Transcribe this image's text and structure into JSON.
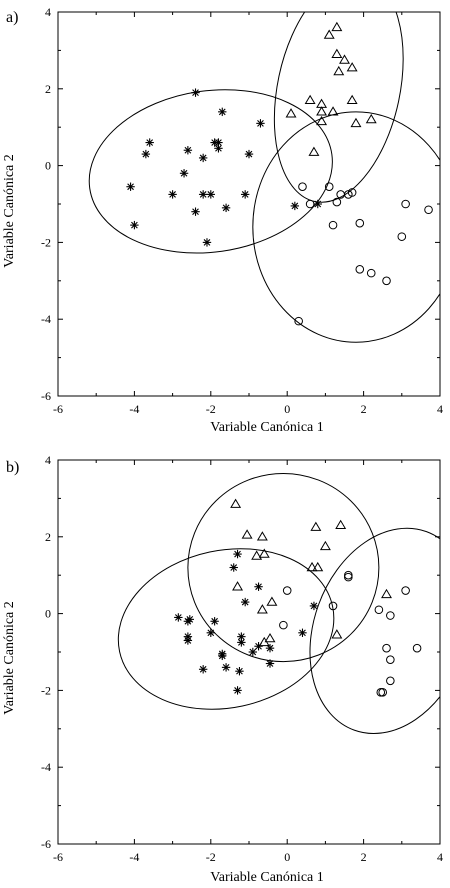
{
  "chart_data": [
    {
      "type": "scatter",
      "panel_label": "a)",
      "xlabel": "Variable Canónica 1",
      "ylabel": "Variable Canónica 2",
      "xlim": [
        -6,
        4
      ],
      "ylim": [
        -6,
        4
      ],
      "xticks": [
        -6,
        -4,
        -2,
        0,
        2,
        4
      ],
      "yticks": [
        -6,
        -4,
        -2,
        0,
        2,
        4
      ],
      "grid": false,
      "series": [
        {
          "marker": "asterisk",
          "points": [
            [
              -2.4,
              1.9
            ],
            [
              -1.7,
              1.4
            ],
            [
              -0.7,
              1.1
            ],
            [
              -3.6,
              0.6
            ],
            [
              -3.7,
              0.3
            ],
            [
              -2.6,
              0.4
            ],
            [
              -1.9,
              0.6
            ],
            [
              -1.8,
              0.6
            ],
            [
              -1.8,
              0.45
            ],
            [
              -2.2,
              0.2
            ],
            [
              -1.0,
              0.3
            ],
            [
              -2.7,
              -0.2
            ],
            [
              -4.1,
              -0.55
            ],
            [
              -3.0,
              -0.75
            ],
            [
              -2.2,
              -0.75
            ],
            [
              -2.0,
              -0.75
            ],
            [
              -1.1,
              -0.75
            ],
            [
              -2.4,
              -1.2
            ],
            [
              -1.6,
              -1.1
            ],
            [
              -4.0,
              -1.55
            ],
            [
              -2.1,
              -2.0
            ],
            [
              0.2,
              -1.05
            ],
            [
              0.8,
              -1.0
            ]
          ]
        },
        {
          "marker": "triangle",
          "points": [
            [
              1.3,
              3.6
            ],
            [
              1.1,
              3.4
            ],
            [
              1.3,
              2.9
            ],
            [
              1.5,
              2.75
            ],
            [
              1.7,
              2.55
            ],
            [
              1.35,
              2.45
            ],
            [
              0.6,
              1.7
            ],
            [
              0.9,
              1.6
            ],
            [
              1.7,
              1.7
            ],
            [
              0.9,
              1.4
            ],
            [
              0.1,
              1.35
            ],
            [
              1.2,
              1.4
            ],
            [
              0.9,
              1.15
            ],
            [
              1.8,
              1.1
            ],
            [
              2.2,
              1.2
            ],
            [
              0.7,
              0.35
            ]
          ]
        },
        {
          "marker": "circle",
          "points": [
            [
              1.1,
              -0.55
            ],
            [
              0.4,
              -0.55
            ],
            [
              1.4,
              -0.75
            ],
            [
              1.6,
              -0.75
            ],
            [
              1.7,
              -0.7
            ],
            [
              0.6,
              -1.0
            ],
            [
              1.3,
              -0.95
            ],
            [
              3.1,
              -1.0
            ],
            [
              3.7,
              -1.15
            ],
            [
              1.2,
              -1.55
            ],
            [
              1.9,
              -1.5
            ],
            [
              3.0,
              -1.85
            ],
            [
              1.9,
              -2.7
            ],
            [
              2.2,
              -2.8
            ],
            [
              2.6,
              -3.0
            ],
            [
              0.3,
              -4.05
            ]
          ]
        }
      ],
      "ellipses": [
        {
          "cx": -2.0,
          "cy": -0.15,
          "rx": 3.2,
          "ry": 2.1,
          "rot": -8
        },
        {
          "cx": 1.35,
          "cy": 2.0,
          "rx": 1.6,
          "ry": 3.0,
          "rot": 12
        },
        {
          "cx": 1.8,
          "cy": -1.6,
          "rx": 2.7,
          "ry": 3.0,
          "rot": 0
        }
      ]
    },
    {
      "type": "scatter",
      "panel_label": "b)",
      "xlabel": "Variable Canónica 1",
      "ylabel": "Variable Canónica 2",
      "xlim": [
        -6,
        4
      ],
      "ylim": [
        -6,
        4
      ],
      "xticks": [
        -6,
        -4,
        -2,
        0,
        2,
        4
      ],
      "yticks": [
        -6,
        -4,
        -2,
        0,
        2,
        4
      ],
      "grid": false,
      "series": [
        {
          "marker": "asterisk",
          "points": [
            [
              -1.4,
              1.2
            ],
            [
              -1.3,
              1.55
            ],
            [
              -0.75,
              0.7
            ],
            [
              -1.1,
              0.3
            ],
            [
              -2.85,
              -0.1
            ],
            [
              -2.55,
              -0.15
            ],
            [
              -2.6,
              -0.2
            ],
            [
              -1.9,
              -0.2
            ],
            [
              -2.0,
              -0.5
            ],
            [
              -2.6,
              -0.6
            ],
            [
              -2.6,
              -0.7
            ],
            [
              -1.2,
              -0.6
            ],
            [
              -1.2,
              -0.75
            ],
            [
              -0.75,
              -0.85
            ],
            [
              -0.45,
              -0.9
            ],
            [
              -0.9,
              -1.0
            ],
            [
              -1.7,
              -1.05
            ],
            [
              -1.7,
              -1.1
            ],
            [
              -1.6,
              -1.4
            ],
            [
              -2.2,
              -1.45
            ],
            [
              -0.45,
              -1.3
            ],
            [
              -1.25,
              -1.5
            ],
            [
              -1.3,
              -2.0
            ],
            [
              0.7,
              0.2
            ],
            [
              0.4,
              -0.5
            ]
          ]
        },
        {
          "marker": "triangle",
          "points": [
            [
              -1.35,
              2.85
            ],
            [
              -1.05,
              2.05
            ],
            [
              -0.65,
              2.0
            ],
            [
              0.75,
              2.25
            ],
            [
              1.4,
              2.3
            ],
            [
              1.0,
              1.75
            ],
            [
              -0.8,
              1.5
            ],
            [
              -0.6,
              1.55
            ],
            [
              0.65,
              1.2
            ],
            [
              0.8,
              1.2
            ],
            [
              -1.3,
              0.7
            ],
            [
              -0.4,
              0.3
            ],
            [
              -0.65,
              0.1
            ],
            [
              2.6,
              0.5
            ],
            [
              -0.45,
              -0.65
            ],
            [
              -0.6,
              -0.75
            ],
            [
              1.3,
              -0.55
            ]
          ]
        },
        {
          "marker": "circle",
          "points": [
            [
              1.6,
              0.95
            ],
            [
              1.6,
              1.0
            ],
            [
              0.0,
              0.6
            ],
            [
              3.1,
              0.6
            ],
            [
              1.2,
              0.2
            ],
            [
              2.4,
              0.1
            ],
            [
              2.7,
              -0.05
            ],
            [
              -0.1,
              -0.3
            ],
            [
              3.4,
              -0.9
            ],
            [
              2.6,
              -0.9
            ],
            [
              2.7,
              -1.2
            ],
            [
              2.7,
              -1.75
            ],
            [
              2.5,
              -2.05
            ],
            [
              2.45,
              -2.05
            ]
          ]
        }
      ],
      "ellipses": [
        {
          "cx": -0.1,
          "cy": 1.2,
          "rx": 2.5,
          "ry": 2.45,
          "rot": 0
        },
        {
          "cx": -1.6,
          "cy": -0.4,
          "rx": 2.85,
          "ry": 2.05,
          "rot": -12
        },
        {
          "cx": 2.7,
          "cy": -0.45,
          "rx": 2.0,
          "ry": 2.75,
          "rot": 20
        }
      ]
    }
  ]
}
